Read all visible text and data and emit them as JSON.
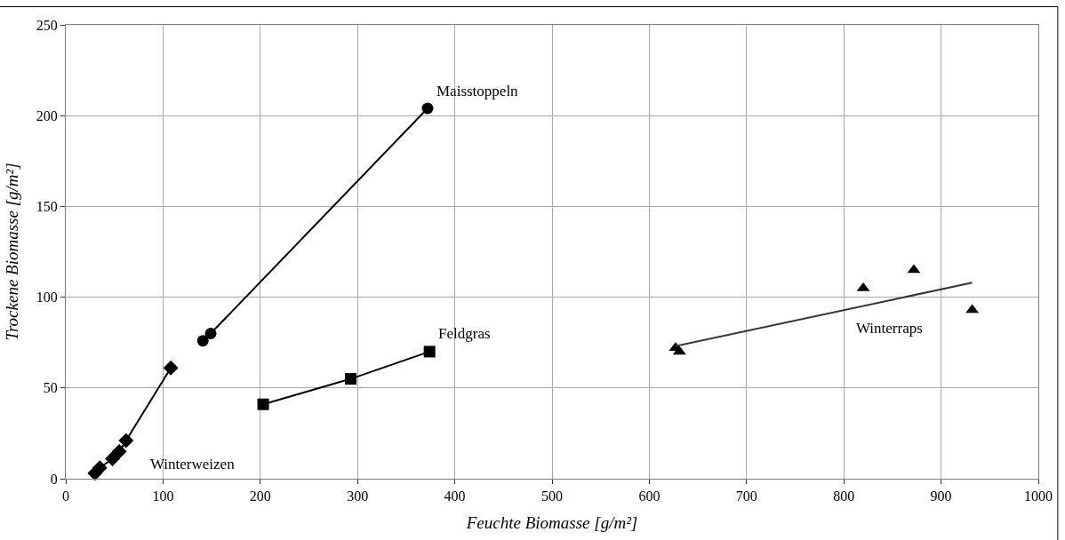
{
  "chart_data": {
    "type": "scatter",
    "xlabel": "Feuchte Biomasse [g/m²]",
    "ylabel": "Trockene Biomasse [g/m²]",
    "xlim": [
      0,
      1000
    ],
    "xticks": [
      0,
      100,
      200,
      300,
      400,
      500,
      600,
      700,
      800,
      900,
      1000
    ],
    "ylim": [
      0,
      250
    ],
    "yticks": [
      0,
      50,
      100,
      150,
      200,
      250
    ],
    "grid": true,
    "legend": false,
    "series": [
      {
        "type": "line",
        "name": "Winterweizen",
        "color": "#000000",
        "marker": "diamond",
        "x": [
          30,
          35,
          48,
          55,
          62,
          108
        ],
        "values": [
          3,
          6,
          11,
          15,
          21,
          61
        ]
      },
      {
        "type": "line",
        "name": "Maisstoppeln",
        "color": "#000000",
        "marker": "circle",
        "x": [
          141,
          149,
          372
        ],
        "values": [
          76,
          80,
          204
        ]
      },
      {
        "type": "line",
        "name": "Feldgras",
        "color": "#000000",
        "marker": "square",
        "x": [
          203,
          293,
          374
        ],
        "values": [
          41,
          55,
          70
        ]
      },
      {
        "name": "Winterraps",
        "color": "#000000",
        "marker": "triangle",
        "x": [
          627,
          631,
          820,
          872,
          932
        ],
        "values": [
          72,
          70,
          105,
          115,
          93
        ]
      },
      {
        "type": "line",
        "color": "#333333",
        "marker": "none",
        "x": [
          627,
          932
        ],
        "values": [
          73,
          108
        ]
      }
    ]
  }
}
